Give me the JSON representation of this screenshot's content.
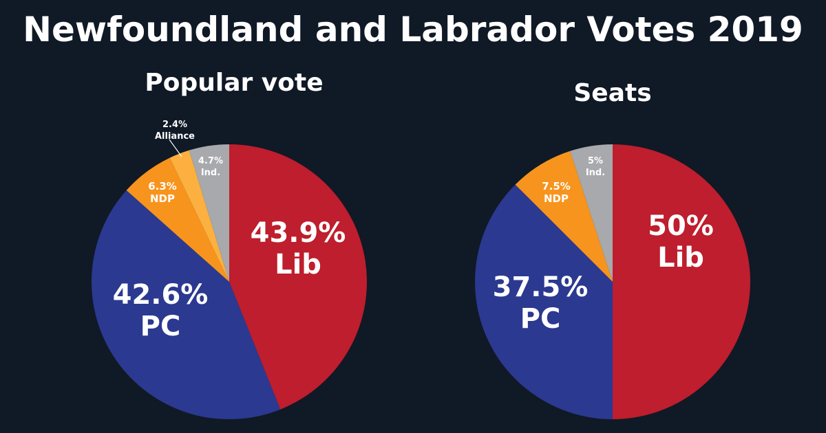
{
  "title": "Newfoundland and Labrador Votes 2019",
  "chart_data": [
    {
      "type": "pie",
      "title": "Popular vote",
      "slices": [
        {
          "key": "lib",
          "pct_text": "43.9%",
          "name": "Lib",
          "value": 43.9,
          "color": "#be1e2d"
        },
        {
          "key": "pc",
          "pct_text": "42.6%",
          "name": "PC",
          "value": 42.6,
          "color": "#2b3990"
        },
        {
          "key": "ndp",
          "pct_text": "6.3%",
          "name": "NDP",
          "value": 6.3,
          "color": "#f7941d"
        },
        {
          "key": "alliance",
          "pct_text": "2.4%",
          "name": "Alliance",
          "value": 2.4,
          "color": "#fbb040"
        },
        {
          "key": "ind",
          "pct_text": "4.7%",
          "name": "Ind.",
          "value": 4.7,
          "color": "#a7a9ac"
        }
      ]
    },
    {
      "type": "pie",
      "title": "Seats",
      "slices": [
        {
          "key": "lib",
          "pct_text": "50%",
          "name": "Lib",
          "value": 50,
          "color": "#be1e2d"
        },
        {
          "key": "pc",
          "pct_text": "37.5%",
          "name": "PC",
          "value": 37.5,
          "color": "#2b3990"
        },
        {
          "key": "ndp",
          "pct_text": "7.5%",
          "name": "NDP",
          "value": 7.5,
          "color": "#f7941d"
        },
        {
          "key": "ind",
          "pct_text": "5%",
          "name": "Ind.",
          "value": 5,
          "color": "#a7a9ac"
        }
      ]
    }
  ]
}
